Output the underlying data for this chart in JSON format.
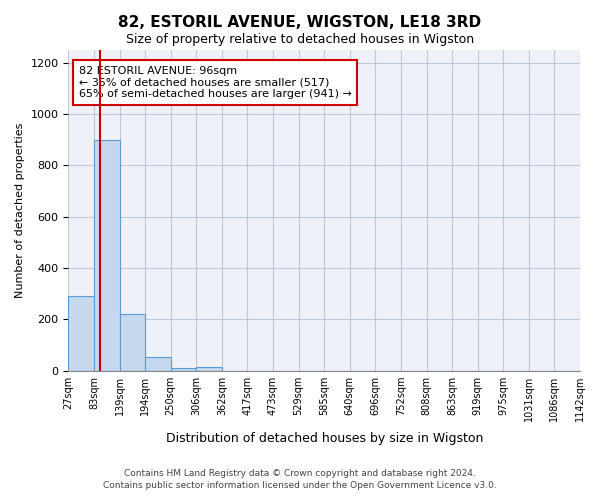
{
  "title": "82, ESTORIL AVENUE, WIGSTON, LE18 3RD",
  "subtitle": "Size of property relative to detached houses in Wigston",
  "xlabel": "Distribution of detached houses by size in Wigston",
  "ylabel": "Number of detached properties",
  "bin_labels": [
    "27sqm",
    "83sqm",
    "139sqm",
    "194sqm",
    "250sqm",
    "306sqm",
    "362sqm",
    "417sqm",
    "473sqm",
    "529sqm",
    "585sqm",
    "640sqm",
    "696sqm",
    "752sqm",
    "808sqm",
    "863sqm",
    "919sqm",
    "975sqm",
    "1031sqm",
    "1086sqm",
    "1142sqm"
  ],
  "bar_heights": [
    290,
    900,
    220,
    55,
    10,
    15,
    0,
    0,
    0,
    0,
    0,
    0,
    0,
    0,
    0,
    0,
    0,
    0,
    0,
    0
  ],
  "bar_color": "#c5d8ed",
  "bar_edge_color": "#5b9bd5",
  "grid_color": "#c0c8d8",
  "background_color": "#eef2f8",
  "ylim": [
    0,
    1250
  ],
  "yticks": [
    0,
    200,
    400,
    600,
    800,
    1000,
    1200
  ],
  "property_size": 96,
  "annotation_text": "82 ESTORIL AVENUE: 96sqm\n← 35% of detached houses are smaller (517)\n65% of semi-detached houses are larger (941) →",
  "annotation_box_color": "#ffffff",
  "annotation_box_edge_color": "#cc0000",
  "red_line_color": "#cc0000",
  "footer_line1": "Contains HM Land Registry data © Crown copyright and database right 2024.",
  "footer_line2": "Contains public sector information licensed under the Open Government Licence v3.0."
}
